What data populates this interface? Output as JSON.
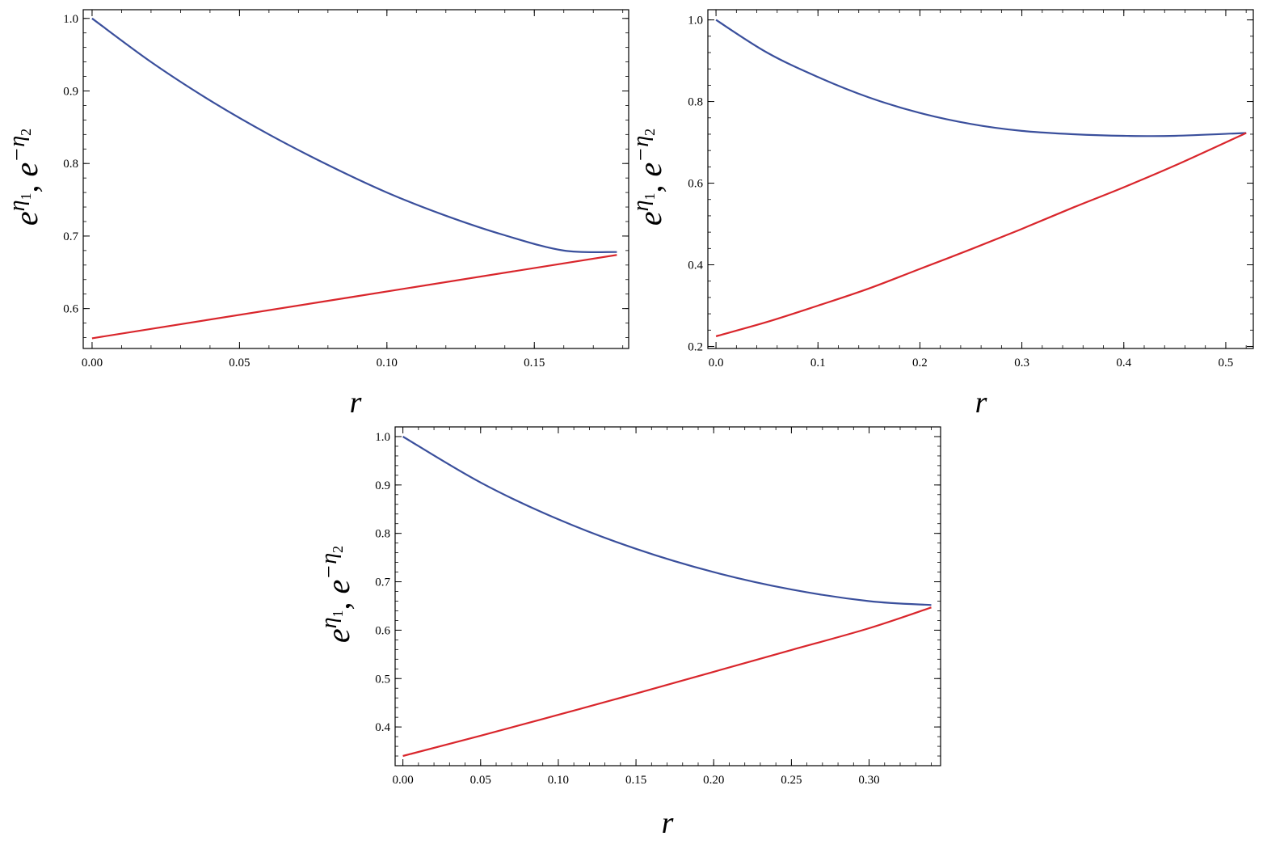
{
  "chart_data": [
    {
      "type": "line",
      "xlabel": "r",
      "ylabel": {
        "base1": "e",
        "sup1": "η",
        "sub1": "1",
        "sep": ", ",
        "base2": "e",
        "sup2": "−η",
        "sub2": "2"
      },
      "xlim": [
        -0.003,
        0.182
      ],
      "ylim": [
        0.545,
        1.012
      ],
      "xticks": [
        0.0,
        0.05,
        0.1,
        0.15
      ],
      "xtick_labels": [
        "0.00",
        "0.05",
        "0.10",
        "0.15"
      ],
      "yticks": [
        0.6,
        0.7,
        0.8,
        0.9,
        1.0
      ],
      "ytick_labels": [
        "0.6",
        "0.7",
        "0.8",
        "0.9",
        "1.0"
      ],
      "series": [
        {
          "color": "#3a4f9c",
          "x": [
            0.0,
            0.02,
            0.04,
            0.06,
            0.08,
            0.1,
            0.12,
            0.14,
            0.16,
            0.178
          ],
          "y": [
            1.0,
            0.94,
            0.887,
            0.84,
            0.798,
            0.76,
            0.728,
            0.701,
            0.68,
            0.678
          ]
        },
        {
          "color": "#d9262c",
          "x": [
            0.0,
            0.178
          ],
          "y": [
            0.559,
            0.674
          ]
        }
      ]
    },
    {
      "type": "line",
      "xlabel": "r",
      "ylabel": {
        "base1": "e",
        "sup1": "η",
        "sub1": "1",
        "sep": ", ",
        "base2": "e",
        "sup2": "−η",
        "sub2": "2"
      },
      "xlim": [
        -0.008,
        0.527
      ],
      "ylim": [
        0.195,
        1.025
      ],
      "xticks": [
        0.0,
        0.1,
        0.2,
        0.3,
        0.4,
        0.5
      ],
      "xtick_labels": [
        "0.0",
        "0.1",
        "0.2",
        "0.3",
        "0.4",
        "0.5"
      ],
      "yticks": [
        0.2,
        0.4,
        0.6,
        0.8,
        1.0
      ],
      "ytick_labels": [
        "0.2",
        "0.4",
        "0.6",
        "0.8",
        "1.0"
      ],
      "series": [
        {
          "color": "#3a4f9c",
          "x": [
            0.0,
            0.05,
            0.1,
            0.15,
            0.2,
            0.25,
            0.3,
            0.35,
            0.4,
            0.45,
            0.52
          ],
          "y": [
            1.0,
            0.92,
            0.86,
            0.81,
            0.772,
            0.745,
            0.728,
            0.72,
            0.716,
            0.716,
            0.723
          ]
        },
        {
          "color": "#d9262c",
          "x": [
            0.0,
            0.05,
            0.1,
            0.15,
            0.2,
            0.25,
            0.3,
            0.35,
            0.4,
            0.45,
            0.52
          ],
          "y": [
            0.225,
            0.26,
            0.3,
            0.342,
            0.39,
            0.438,
            0.488,
            0.54,
            0.59,
            0.643,
            0.723
          ]
        }
      ]
    },
    {
      "type": "line",
      "xlabel": "r",
      "ylabel": {
        "base1": "e",
        "sup1": "η",
        "sub1": "1",
        "sep": ", ",
        "base2": "e",
        "sup2": "−η",
        "sub2": "2"
      },
      "xlim": [
        -0.005,
        0.346
      ],
      "ylim": [
        0.32,
        1.02
      ],
      "xticks": [
        0.0,
        0.05,
        0.1,
        0.15,
        0.2,
        0.25,
        0.3
      ],
      "xtick_labels": [
        "0.00",
        "0.05",
        "0.10",
        "0.15",
        "0.20",
        "0.25",
        "0.30"
      ],
      "yticks": [
        0.4,
        0.5,
        0.6,
        0.7,
        0.8,
        0.9,
        1.0
      ],
      "ytick_labels": [
        "0.4",
        "0.5",
        "0.6",
        "0.7",
        "0.8",
        "0.9",
        "1.0"
      ],
      "series": [
        {
          "color": "#3a4f9c",
          "x": [
            0.0,
            0.05,
            0.1,
            0.15,
            0.2,
            0.25,
            0.3,
            0.34
          ],
          "y": [
            1.0,
            0.905,
            0.829,
            0.768,
            0.72,
            0.684,
            0.66,
            0.652
          ]
        },
        {
          "color": "#d9262c",
          "x": [
            0.0,
            0.05,
            0.1,
            0.15,
            0.2,
            0.25,
            0.3,
            0.34
          ],
          "y": [
            0.34,
            0.382,
            0.425,
            0.469,
            0.514,
            0.559,
            0.604,
            0.647
          ]
        }
      ]
    }
  ]
}
